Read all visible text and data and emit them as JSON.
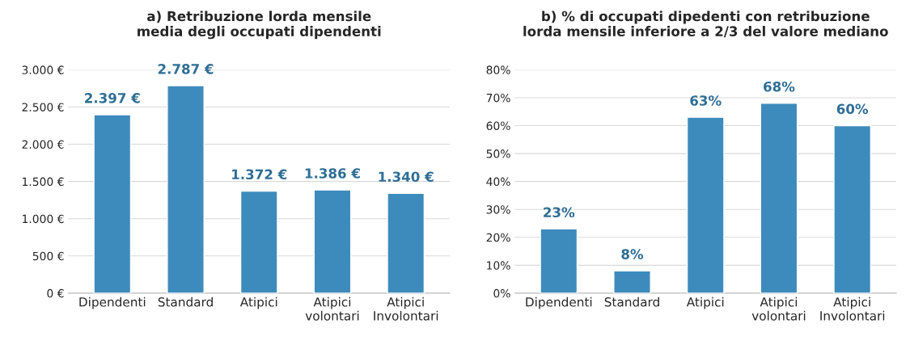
{
  "chart_data": [
    {
      "type": "bar",
      "title": "a) Retribuzione lorda mensile\nmedia degli occupati dipendenti",
      "categories": [
        "Dipendenti",
        "Standard",
        "Atipici",
        "Atipici\nvolontari",
        "Atipici\nInvolontari"
      ],
      "values": [
        2397,
        2787,
        1372,
        1386,
        1340
      ],
      "value_labels": [
        "2.397 €",
        "2.787 €",
        "1.372 €",
        "1.386 €",
        "1.340 €"
      ],
      "color": "#3d8bbd",
      "ylim": [
        0,
        3000
      ],
      "yticks": [
        {
          "value": 0,
          "label": "0 €"
        },
        {
          "value": 500,
          "label": "500 €"
        },
        {
          "value": 1000,
          "label": "1.000 €"
        },
        {
          "value": 1500,
          "label": "1.500 €"
        },
        {
          "value": 2000,
          "label": "2.000 €"
        },
        {
          "value": 2500,
          "label": "2.500 €"
        },
        {
          "value": 3000,
          "label": "3.000 €"
        }
      ],
      "grid": "y"
    },
    {
      "type": "bar",
      "title": "b) % di occupati dipedenti con retribuzione\nlorda mensile inferiore a 2/3 del valore mediano",
      "categories": [
        "Dipendenti",
        "Standard",
        "Atipici",
        "Atipici\nvolontari",
        "Atipici\nInvolontari"
      ],
      "values": [
        23,
        8,
        63,
        68,
        60
      ],
      "value_labels": [
        "23%",
        "8%",
        "63%",
        "68%",
        "60%"
      ],
      "color": "#3d8bbd",
      "ylim": [
        0,
        80
      ],
      "yticks": [
        {
          "value": 0,
          "label": "0%"
        },
        {
          "value": 10,
          "label": "10%"
        },
        {
          "value": 20,
          "label": "20%"
        },
        {
          "value": 30,
          "label": "30%"
        },
        {
          "value": 40,
          "label": "40%"
        },
        {
          "value": 50,
          "label": "50%"
        },
        {
          "value": 60,
          "label": "60%"
        },
        {
          "value": 70,
          "label": "70%"
        },
        {
          "value": 80,
          "label": "80%"
        }
      ],
      "grid": "y"
    }
  ]
}
